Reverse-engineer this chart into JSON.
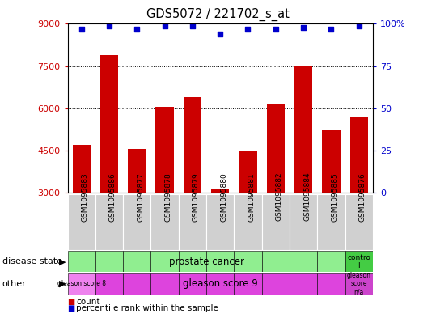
{
  "title": "GDS5072 / 221702_s_at",
  "samples": [
    "GSM1095883",
    "GSM1095886",
    "GSM1095877",
    "GSM1095878",
    "GSM1095879",
    "GSM1095880",
    "GSM1095881",
    "GSM1095882",
    "GSM1095884",
    "GSM1095885",
    "GSM1095876"
  ],
  "counts": [
    4700,
    7900,
    4550,
    6050,
    6400,
    3100,
    4500,
    6150,
    7500,
    5200,
    5700
  ],
  "percentiles": [
    97,
    99,
    97,
    99,
    99,
    94,
    97,
    97,
    98,
    97,
    99
  ],
  "ylim_left": [
    3000,
    9000
  ],
  "ylim_right": [
    0,
    100
  ],
  "yticks_left": [
    3000,
    4500,
    6000,
    7500,
    9000
  ],
  "yticks_right": [
    0,
    25,
    50,
    75,
    100
  ],
  "bar_color": "#cc0000",
  "dot_color": "#0000cc",
  "bar_bottom": 3000,
  "disease_state_prostate_color": "#90ee90",
  "disease_state_control_color": "#44cc44",
  "gleason8_color": "#ee82ee",
  "gleason9_color": "#dd44dd",
  "gleasonNA_color": "#cc44cc",
  "sample_bg_color": "#d0d0d0",
  "background_color": "#ffffff",
  "tick_color_left": "#cc0000",
  "tick_color_right": "#0000cc",
  "grid_yticks": [
    4500,
    6000,
    7500
  ],
  "disease_states": [
    "prostate cancer",
    "prostate cancer",
    "prostate cancer",
    "prostate cancer",
    "prostate cancer",
    "prostate cancer",
    "prostate cancer",
    "prostate cancer",
    "prostate cancer",
    "prostate cancer",
    "control"
  ],
  "other_labels": [
    "gleason score 8",
    "gleason score 9",
    "gleason score 9",
    "gleason score 9",
    "gleason score 9",
    "gleason score 9",
    "gleason score 9",
    "gleason score 9",
    "gleason score 9",
    "gleason score 9",
    "gleason score n/a"
  ]
}
